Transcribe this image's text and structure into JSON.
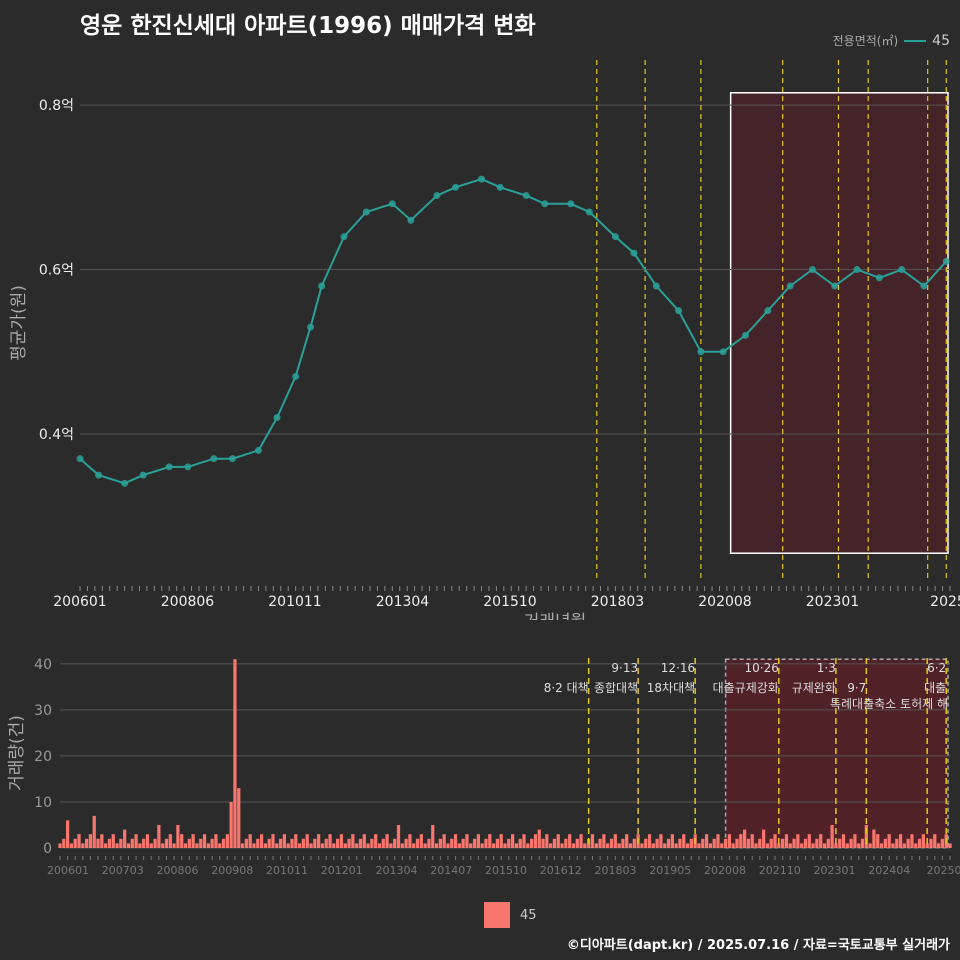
{
  "title": "영운 한진신세대 아파트(1996) 매매가격 변화",
  "legend_top": {
    "title": "전용면적(㎡)",
    "entry": "45"
  },
  "legend_bottom": {
    "entry": "45"
  },
  "caption": "©디아파트(dapt.kr) / 2025.07.16 / 자료=국토교통부 실거래가",
  "colors": {
    "line": "#2aa198",
    "bar": "#f8766d",
    "policy": "#e6c619",
    "highlight": "#5a1f26"
  },
  "chart_data": [
    {
      "type": "line",
      "ylabel": "평균가(원)",
      "xlabel": "거래년월",
      "x_tick_labels": [
        "200601",
        "200806",
        "201011",
        "201304",
        "201510",
        "201803",
        "202008",
        "202301",
        "2025"
      ],
      "y_tick_labels": [
        "0.4억",
        "0.6억",
        "0.8억"
      ],
      "ylim": [
        0.22,
        0.85
      ],
      "y_ticks": [
        0.4,
        0.6,
        0.8
      ],
      "xlim": [
        "2006-01",
        "2025-07"
      ],
      "series": [
        {
          "name": "45",
          "points": [
            [
              "2006-01",
              0.37
            ],
            [
              "2006-06",
              0.35
            ],
            [
              "2007-01",
              0.34
            ],
            [
              "2007-06",
              0.35
            ],
            [
              "2008-01",
              0.36
            ],
            [
              "2008-06",
              0.36
            ],
            [
              "2009-01",
              0.37
            ],
            [
              "2009-06",
              0.37
            ],
            [
              "2010-01",
              0.38
            ],
            [
              "2010-06",
              0.42
            ],
            [
              "2010-11",
              0.47
            ],
            [
              "2011-03",
              0.53
            ],
            [
              "2011-06",
              0.58
            ],
            [
              "2011-12",
              0.64
            ],
            [
              "2012-06",
              0.67
            ],
            [
              "2013-01",
              0.68
            ],
            [
              "2013-06",
              0.66
            ],
            [
              "2014-01",
              0.69
            ],
            [
              "2014-06",
              0.7
            ],
            [
              "2015-01",
              0.71
            ],
            [
              "2015-06",
              0.7
            ],
            [
              "2016-01",
              0.69
            ],
            [
              "2016-06",
              0.68
            ],
            [
              "2017-01",
              0.68
            ],
            [
              "2017-06",
              0.67
            ],
            [
              "2018-01",
              0.64
            ],
            [
              "2018-06",
              0.62
            ],
            [
              "2018-12",
              0.58
            ],
            [
              "2019-06",
              0.55
            ],
            [
              "2019-12",
              0.5
            ],
            [
              "2020-06",
              0.5
            ],
            [
              "2020-12",
              0.52
            ],
            [
              "2021-06",
              0.55
            ],
            [
              "2021-12",
              0.58
            ],
            [
              "2022-06",
              0.6
            ],
            [
              "2022-12",
              0.58
            ],
            [
              "2023-06",
              0.6
            ],
            [
              "2023-12",
              0.59
            ],
            [
              "2024-06",
              0.6
            ],
            [
              "2024-12",
              0.58
            ],
            [
              "2025-06",
              0.61
            ]
          ]
        }
      ],
      "policy_lines": [
        "2017-08",
        "2018-09",
        "2019-12",
        "2021-10",
        "2023-01",
        "2023-09",
        "2025-01",
        "2025-06"
      ],
      "highlight": {
        "from": "2020-08",
        "to": "2025-07",
        "ymin": 0.255,
        "ymax": 0.815
      }
    },
    {
      "type": "bar",
      "ylabel": "거래량(건)",
      "x_tick_labels": [
        "200601",
        "200703",
        "200806",
        "200908",
        "201011",
        "201201",
        "201304",
        "201407",
        "201510",
        "201612",
        "201803",
        "201905",
        "202008",
        "202110",
        "202301",
        "202404",
        "20250"
      ],
      "y_tick_labels": [
        "0",
        "10",
        "20",
        "30",
        "40"
      ],
      "y_ticks": [
        0,
        10,
        20,
        30,
        40
      ],
      "ylim": [
        0,
        43
      ],
      "xlim": [
        "2006-01",
        "2025-07"
      ],
      "spikes": [
        [
          "2009-10",
          10
        ],
        [
          "2009-11",
          41
        ],
        [
          "2009-12",
          13
        ],
        [
          "2006-03",
          6
        ],
        [
          "2006-10",
          7
        ],
        [
          "2007-06",
          4
        ],
        [
          "2008-03",
          5
        ],
        [
          "2008-08",
          5
        ],
        [
          "2013-06",
          5
        ],
        [
          "2014-03",
          5
        ],
        [
          "2016-07",
          4
        ],
        [
          "2021-01",
          4
        ],
        [
          "2021-06",
          4
        ],
        [
          "2022-12",
          5
        ],
        [
          "2023-09",
          5
        ],
        [
          "2023-11",
          4
        ]
      ],
      "policy_lines": [
        "2017-08",
        "2018-09",
        "2019-12",
        "2021-10",
        "2023-01",
        "2023-09",
        "2025-01",
        "2025-06"
      ],
      "policy_labels": [
        {
          "x": "2017-08",
          "l1": "",
          "l2": "8·2 대책"
        },
        {
          "x": "2018-09",
          "l1": "9·13",
          "l2": "종합대책"
        },
        {
          "x": "2019-12",
          "l1": "12·16",
          "l2": "18차대책"
        },
        {
          "x": "2021-10",
          "l1": "10·26",
          "l2": "대출규제강화"
        },
        {
          "x": "2023-01",
          "l1": "1·3",
          "l2": "규제완화"
        },
        {
          "x": "2023-09",
          "l1": "",
          "l2": "9·7"
        },
        {
          "x": "2025-06",
          "l1": "6·2",
          "l2": "대출"
        }
      ],
      "extra_label": "특례대출축소 토허제 해",
      "highlight": {
        "from": "2020-08",
        "to": "2025-07",
        "ymin": 0,
        "ymax": 41
      }
    }
  ]
}
